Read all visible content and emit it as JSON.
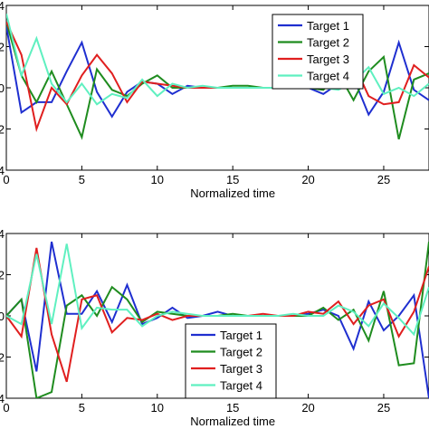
{
  "chart_data": [
    {
      "type": "line",
      "xlabel": "Normalized time",
      "ylabel": "",
      "x": [
        0,
        1,
        2,
        3,
        4,
        5,
        6,
        7,
        8,
        9,
        10,
        11,
        12,
        13,
        14,
        15,
        16,
        17,
        18,
        19,
        20,
        21,
        22,
        23,
        24,
        25,
        26,
        27,
        28
      ],
      "xlim": [
        0,
        28
      ],
      "ylim": [
        -4,
        4
      ],
      "xticks": [
        0,
        5,
        10,
        15,
        20,
        25
      ],
      "xtick_labels": [
        "0",
        "5",
        "10",
        "15",
        "20",
        "25"
      ],
      "ytick_labels": [
        "4",
        "2",
        "0",
        "2",
        "4"
      ],
      "legend_position": "top-right",
      "series": [
        {
          "name": "Target 1",
          "color": "#1f2fd0",
          "values": [
            3.0,
            -1.2,
            -0.7,
            -0.7,
            0.8,
            2.2,
            -0.2,
            -1.4,
            -0.2,
            0.3,
            0.2,
            -0.3,
            0.1,
            0.0,
            0.0,
            0.0,
            0.0,
            0.0,
            0.0,
            0.0,
            0.0,
            -0.3,
            0.2,
            0.5,
            -1.3,
            -0.2,
            2.2,
            -0.1,
            -0.6
          ]
        },
        {
          "name": "Target 2",
          "color": "#1f8c1f",
          "values": [
            3.2,
            0.6,
            -0.7,
            0.8,
            -0.8,
            -2.4,
            0.9,
            -0.1,
            -0.4,
            0.2,
            0.6,
            0.0,
            0.0,
            0.0,
            0.0,
            0.1,
            0.1,
            0.0,
            0.0,
            0.0,
            0.0,
            -0.1,
            0.7,
            -0.6,
            0.8,
            1.5,
            -2.5,
            0.4,
            0.7
          ]
        },
        {
          "name": "Target 3",
          "color": "#e01f1f",
          "values": [
            3.2,
            1.6,
            -2.0,
            0.0,
            -0.8,
            0.6,
            1.6,
            0.7,
            -0.7,
            0.3,
            0.2,
            0.1,
            0.0,
            0.0,
            0.0,
            0.0,
            0.0,
            0.0,
            0.0,
            0.0,
            0.0,
            0.0,
            0.0,
            1.2,
            -0.4,
            -0.8,
            -0.7,
            1.1,
            0.5
          ]
        },
        {
          "name": "Target 4",
          "color": "#5ff0c0",
          "values": [
            3.6,
            0.6,
            2.4,
            0.2,
            -0.7,
            0.2,
            -0.8,
            -0.3,
            -0.5,
            0.4,
            -0.4,
            0.2,
            0.0,
            0.1,
            0.0,
            0.0,
            0.0,
            0.0,
            0.0,
            0.0,
            0.0,
            0.0,
            -0.1,
            0.3,
            1.0,
            -0.3,
            0.0,
            -0.4,
            0.2
          ]
        }
      ]
    },
    {
      "type": "line",
      "xlabel": "Normalized time",
      "ylabel": "",
      "x": [
        0,
        1,
        2,
        3,
        4,
        5,
        6,
        7,
        8,
        9,
        10,
        11,
        12,
        13,
        14,
        15,
        16,
        17,
        18,
        19,
        20,
        21,
        22,
        23,
        24,
        25,
        26,
        27,
        28
      ],
      "xlim": [
        0,
        28
      ],
      "ylim": [
        -4,
        4
      ],
      "xticks": [
        0,
        5,
        10,
        15,
        20,
        25
      ],
      "xtick_labels": [
        "0",
        "5",
        "10",
        "15",
        "20",
        "25"
      ],
      "ytick_labels": [
        "4",
        "2",
        "0",
        "2",
        "4"
      ],
      "legend_position": "bottom-center",
      "series": [
        {
          "name": "Target 1",
          "color": "#1f2fd0",
          "values": [
            0.0,
            0.8,
            -2.7,
            3.6,
            0.1,
            0.1,
            1.2,
            -0.3,
            1.5,
            -0.4,
            -0.1,
            0.4,
            -0.1,
            0.0,
            0.2,
            0.0,
            0.0,
            0.0,
            0.0,
            0.0,
            0.1,
            0.3,
            0.0,
            -1.6,
            0.7,
            -0.7,
            0.0,
            1.0,
            -4.0
          ]
        },
        {
          "name": "Target 2",
          "color": "#1f8c1f",
          "values": [
            0.0,
            0.8,
            -4.0,
            -3.7,
            0.5,
            1.0,
            0.0,
            1.4,
            0.8,
            -0.3,
            0.2,
            0.1,
            0.0,
            0.0,
            0.0,
            0.1,
            0.0,
            0.0,
            0.0,
            0.0,
            0.0,
            0.4,
            -0.2,
            0.3,
            -1.2,
            1.2,
            -2.4,
            -2.3,
            3.6
          ]
        },
        {
          "name": "Target 3",
          "color": "#e01f1f",
          "values": [
            0.0,
            -1.0,
            3.3,
            -0.9,
            -3.2,
            0.8,
            1.0,
            -0.8,
            -0.1,
            -0.2,
            0.1,
            -0.2,
            0.0,
            0.0,
            0.0,
            0.0,
            0.0,
            0.1,
            0.0,
            0.0,
            0.2,
            0.1,
            0.7,
            -0.4,
            0.5,
            0.8,
            -1.0,
            0.2,
            2.4
          ]
        },
        {
          "name": "Target 4",
          "color": "#5ff0c0",
          "values": [
            0.0,
            -0.4,
            3.0,
            -0.4,
            3.5,
            -0.6,
            0.4,
            0.3,
            0.3,
            -0.5,
            0.0,
            0.2,
            0.1,
            0.0,
            0.0,
            0.0,
            0.0,
            0.0,
            0.0,
            0.1,
            0.0,
            0.0,
            0.5,
            0.2,
            -0.5,
            0.6,
            -0.1,
            -0.9,
            1.4
          ]
        }
      ]
    }
  ]
}
